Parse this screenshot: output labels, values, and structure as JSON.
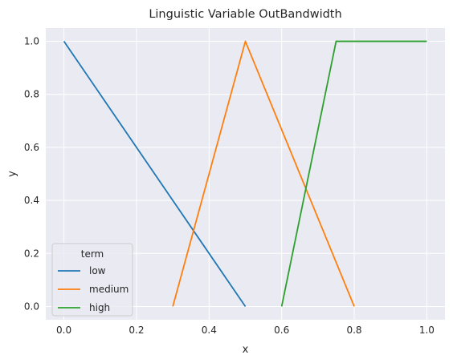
{
  "chart_data": {
    "type": "line",
    "title": "Linguistic Variable OutBandwidth",
    "xlabel": "x",
    "ylabel": "y",
    "xlim": [
      -0.05,
      1.05
    ],
    "ylim": [
      -0.05,
      1.05
    ],
    "xticks": [
      0.0,
      0.2,
      0.4,
      0.6,
      0.8,
      1.0
    ],
    "xtick_labels": [
      "0.0",
      "0.2",
      "0.4",
      "0.6",
      "0.8",
      "1.0"
    ],
    "yticks": [
      0.0,
      0.2,
      0.4,
      0.6,
      0.8,
      1.0
    ],
    "ytick_labels": [
      "0.0",
      "0.2",
      "0.4",
      "0.6",
      "0.8",
      "1.0"
    ],
    "grid": true,
    "background_color": "#eaeaf2",
    "grid_color": "#ffffff",
    "legend": {
      "title": "term",
      "placement": "lower-left"
    },
    "series": [
      {
        "name": "low",
        "color": "#1f77b4",
        "points": [
          [
            0.0,
            1.0
          ],
          [
            0.5,
            0.0
          ]
        ]
      },
      {
        "name": "medium",
        "color": "#ff7f0e",
        "points": [
          [
            0.3,
            0.0
          ],
          [
            0.5,
            1.0
          ],
          [
            0.8,
            0.0
          ]
        ]
      },
      {
        "name": "high",
        "color": "#2ca02c",
        "points": [
          [
            0.6,
            0.0
          ],
          [
            0.75,
            1.0
          ],
          [
            1.0,
            1.0
          ]
        ]
      }
    ]
  }
}
